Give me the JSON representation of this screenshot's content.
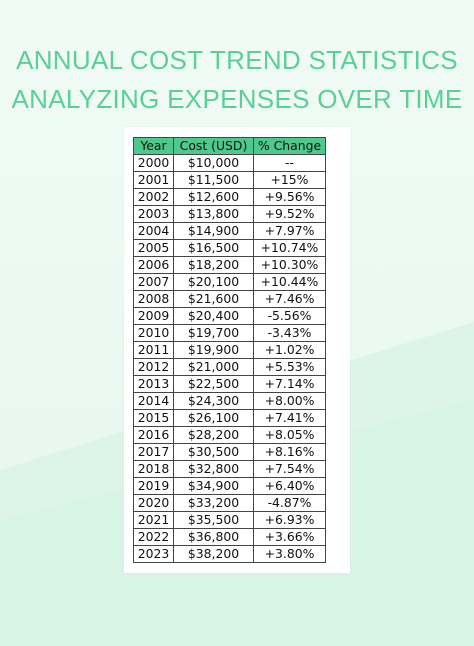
{
  "title": {
    "line1": "ANNUAL COST TREND STATISTICS",
    "line2": "ANALYZING EXPENSES OVER TIME"
  },
  "colors": {
    "title": "#5ccf97",
    "header_fill": "#4ec88b",
    "background_top": "#eef9f3",
    "background_bottom": "#daf5e6"
  },
  "table": {
    "headers": [
      "Year",
      "Cost (USD)",
      "% Change"
    ],
    "rows": [
      [
        "2000",
        "$10,000",
        "--"
      ],
      [
        "2001",
        "$11,500",
        "+15%"
      ],
      [
        "2002",
        "$12,600",
        "+9.56%"
      ],
      [
        "2003",
        "$13,800",
        "+9.52%"
      ],
      [
        "2004",
        "$14,900",
        "+7.97%"
      ],
      [
        "2005",
        "$16,500",
        "+10.74%"
      ],
      [
        "2006",
        "$18,200",
        "+10.30%"
      ],
      [
        "2007",
        "$20,100",
        "+10.44%"
      ],
      [
        "2008",
        "$21,600",
        "+7.46%"
      ],
      [
        "2009",
        "$20,400",
        "-5.56%"
      ],
      [
        "2010",
        "$19,700",
        "-3.43%"
      ],
      [
        "2011",
        "$19,900",
        "+1.02%"
      ],
      [
        "2012",
        "$21,000",
        "+5.53%"
      ],
      [
        "2013",
        "$22,500",
        "+7.14%"
      ],
      [
        "2014",
        "$24,300",
        "+8.00%"
      ],
      [
        "2015",
        "$26,100",
        "+7.41%"
      ],
      [
        "2016",
        "$28,200",
        "+8.05%"
      ],
      [
        "2017",
        "$30,500",
        "+8.16%"
      ],
      [
        "2018",
        "$32,800",
        "+7.54%"
      ],
      [
        "2019",
        "$34,900",
        "+6.40%"
      ],
      [
        "2020",
        "$33,200",
        "-4.87%"
      ],
      [
        "2021",
        "$35,500",
        "+6.93%"
      ],
      [
        "2022",
        "$36,800",
        "+3.66%"
      ],
      [
        "2023",
        "$38,200",
        "+3.80%"
      ]
    ]
  }
}
